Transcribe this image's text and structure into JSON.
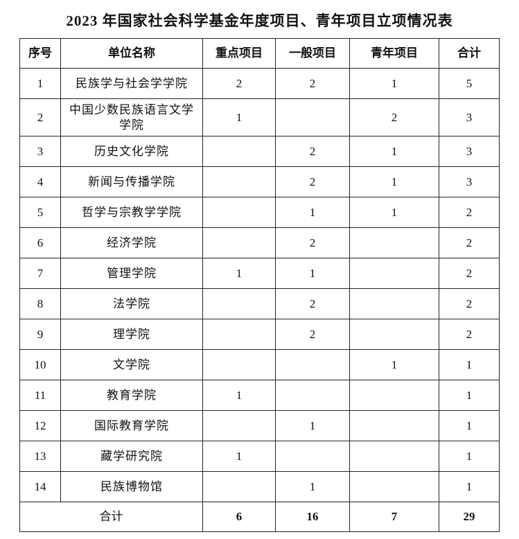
{
  "title": "2023 年国家社会科学基金年度项目、青年项目立项情况表",
  "headers": [
    "序号",
    "单位名称",
    "重点项目",
    "一般项目",
    "青年项目",
    "合计"
  ],
  "rows": [
    {
      "no": "1",
      "name": "民族学与社会学学院",
      "key": "2",
      "general": "2",
      "youth": "1",
      "total": "5"
    },
    {
      "no": "2",
      "name": "中国少数民族语言文学学院",
      "key": "1",
      "general": "",
      "youth": "2",
      "total": "3"
    },
    {
      "no": "3",
      "name": "历史文化学院",
      "key": "",
      "general": "2",
      "youth": "1",
      "total": "3"
    },
    {
      "no": "4",
      "name": "新闻与传播学院",
      "key": "",
      "general": "2",
      "youth": "1",
      "total": "3"
    },
    {
      "no": "5",
      "name": "哲学与宗教学学院",
      "key": "",
      "general": "1",
      "youth": "1",
      "total": "2"
    },
    {
      "no": "6",
      "name": "经济学院",
      "key": "",
      "general": "2",
      "youth": "",
      "total": "2"
    },
    {
      "no": "7",
      "name": "管理学院",
      "key": "1",
      "general": "1",
      "youth": "",
      "total": "2"
    },
    {
      "no": "8",
      "name": "法学院",
      "key": "",
      "general": "2",
      "youth": "",
      "total": "2"
    },
    {
      "no": "9",
      "name": "理学院",
      "key": "",
      "general": "2",
      "youth": "",
      "total": "2"
    },
    {
      "no": "10",
      "name": "文学院",
      "key": "",
      "general": "",
      "youth": "1",
      "total": "1"
    },
    {
      "no": "11",
      "name": "教育学院",
      "key": "1",
      "general": "",
      "youth": "",
      "total": "1"
    },
    {
      "no": "12",
      "name": "国际教育学院",
      "key": "",
      "general": "1",
      "youth": "",
      "total": "1"
    },
    {
      "no": "13",
      "name": "藏学研究院",
      "key": "1",
      "general": "",
      "youth": "",
      "total": "1"
    },
    {
      "no": "14",
      "name": "民族博物馆",
      "key": "",
      "general": "1",
      "youth": "",
      "total": "1"
    }
  ],
  "totals": {
    "label": "合计",
    "key": "6",
    "general": "16",
    "youth": "7",
    "total": "29"
  }
}
